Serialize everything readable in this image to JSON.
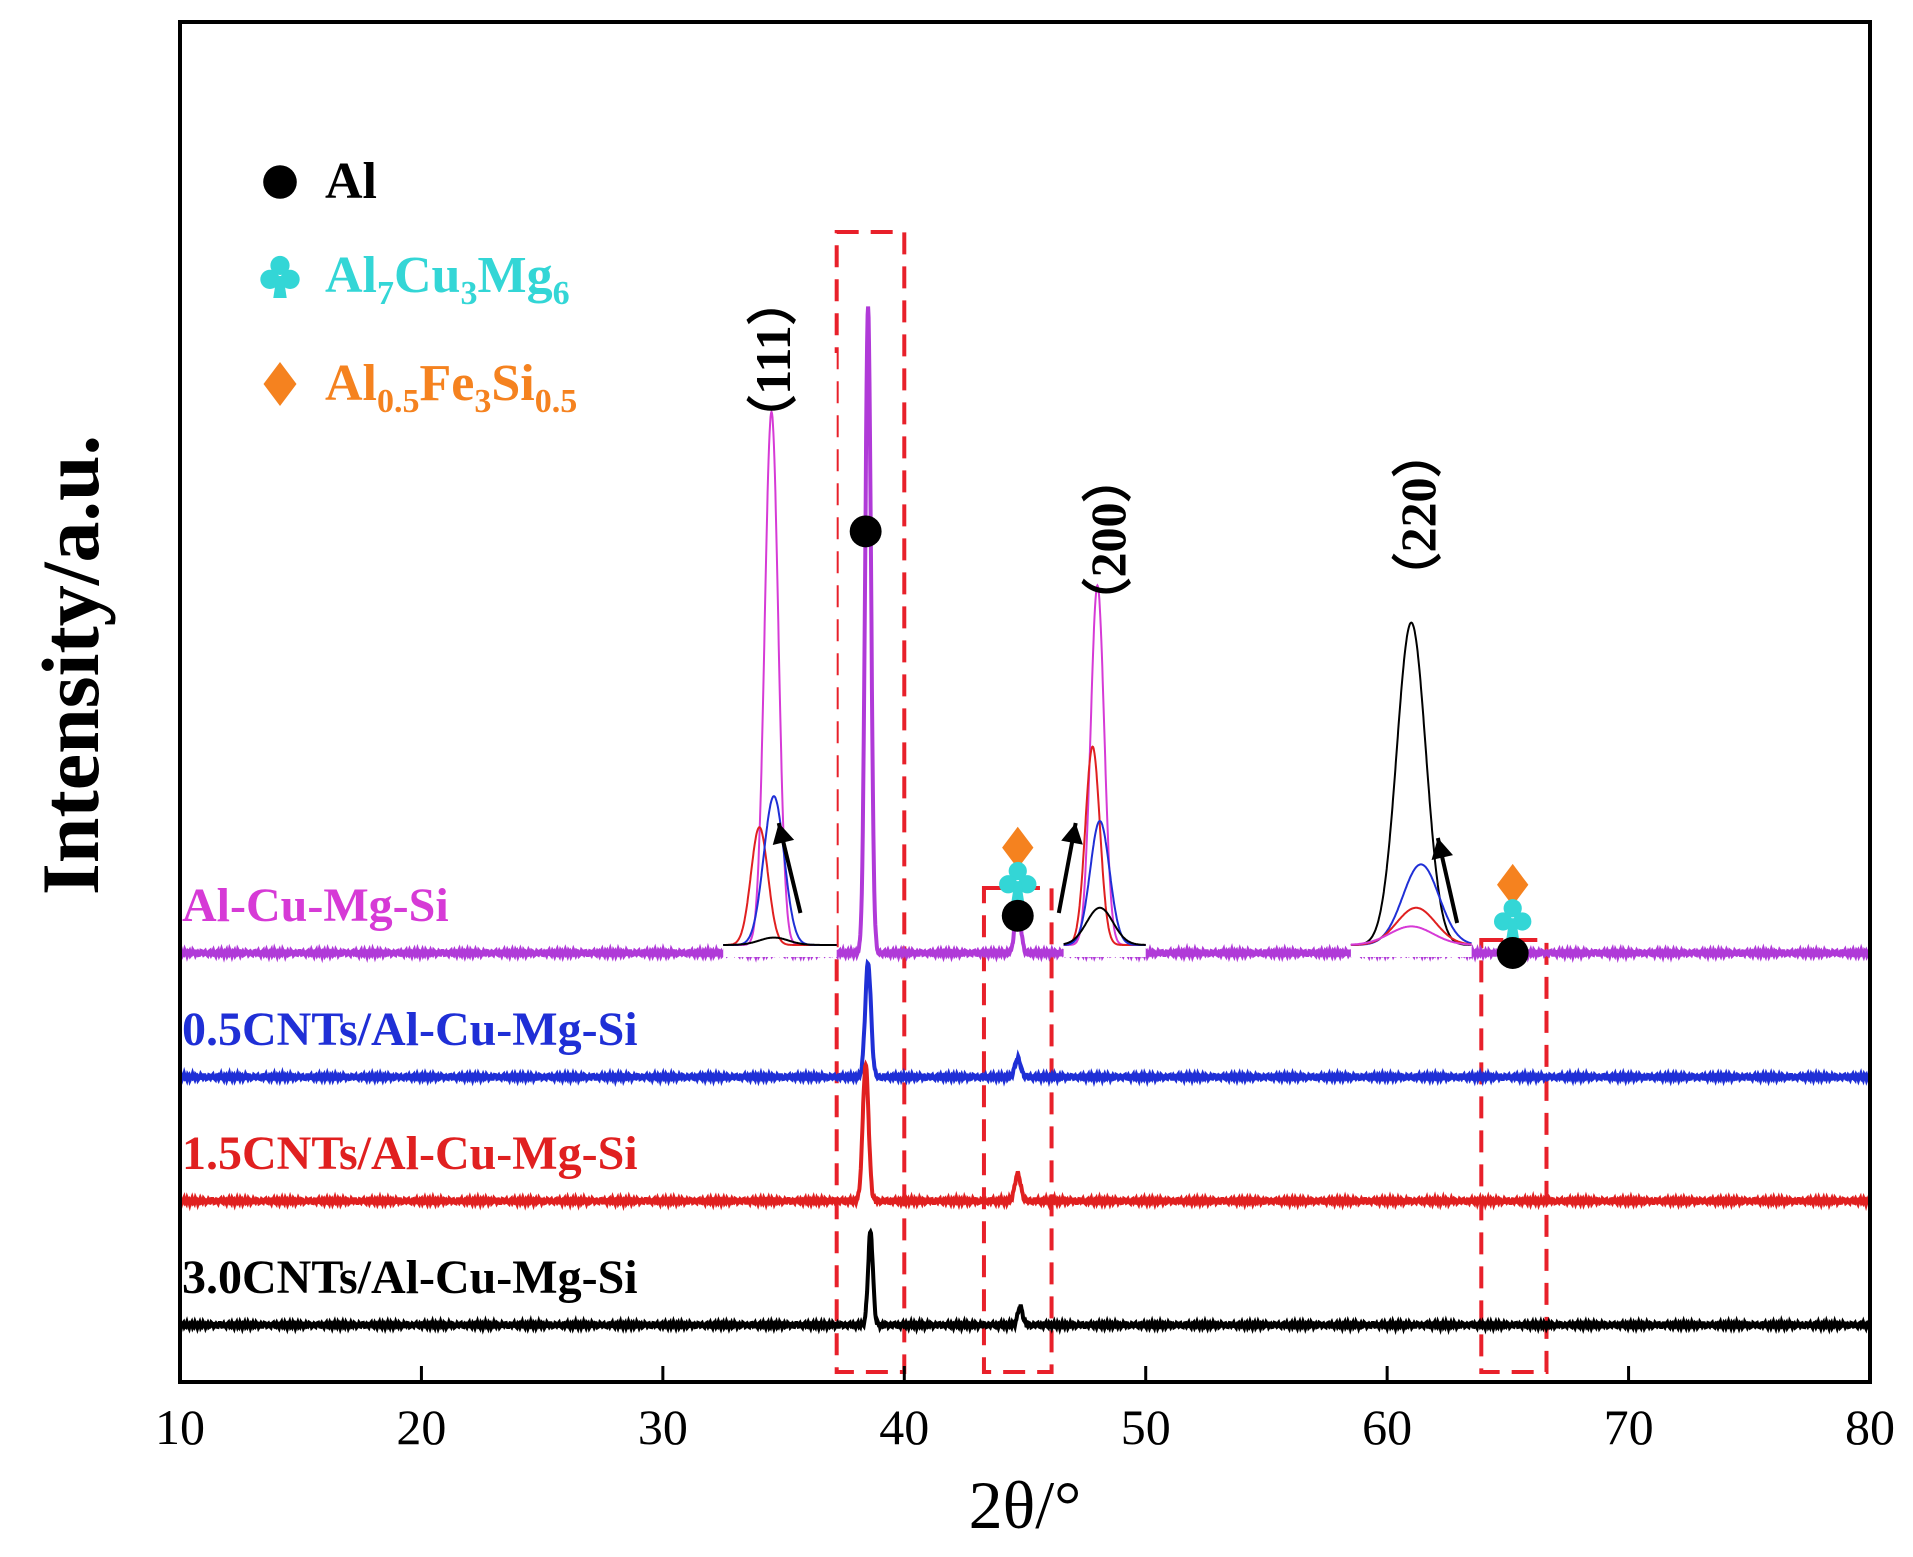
{
  "chart_data": {
    "type": "line",
    "title": "",
    "xlabel": "2θ/°",
    "ylabel": "Intensity/a.u.",
    "xlim": [
      10,
      80
    ],
    "xticks": [
      10,
      20,
      30,
      40,
      50,
      60,
      70,
      80
    ],
    "xtick_labels": [
      "10",
      "20",
      "30",
      "40",
      "50",
      "60",
      "70",
      "80"
    ],
    "y_ticks_shown": false,
    "legend": {
      "placement": "top-left",
      "entries": [
        {
          "marker": "circle",
          "color": "#000000",
          "text": "Al",
          "parts": [
            {
              "t": "Al",
              "sub": false
            }
          ]
        },
        {
          "marker": "club",
          "color": "#33d6d6",
          "text": "Al7Cu3Mg6",
          "parts": [
            {
              "t": "Al",
              "sub": false
            },
            {
              "t": "7",
              "sub": true
            },
            {
              "t": "Cu",
              "sub": false
            },
            {
              "t": "3",
              "sub": true
            },
            {
              "t": "Mg",
              "sub": false
            },
            {
              "t": "6",
              "sub": true
            }
          ]
        },
        {
          "marker": "diamond",
          "color": "#f5821f",
          "text": "Al0.5Fe3Si0.5",
          "parts": [
            {
              "t": "Al",
              "sub": false
            },
            {
              "t": "0.5",
              "sub": true
            },
            {
              "t": "Fe",
              "sub": false
            },
            {
              "t": "3",
              "sub": true
            },
            {
              "t": "Si",
              "sub": false
            },
            {
              "t": "0.5",
              "sub": true
            }
          ]
        }
      ]
    },
    "series": [
      {
        "name": "Al-Cu-Mg-Si",
        "color": "#b03ad8",
        "label_color": "#d63ad6",
        "offset": 3,
        "peaks": [
          {
            "x": 38.5,
            "h": 5.2,
            "w": 0.12
          },
          {
            "x": 44.7,
            "h": 0.4,
            "w": 0.12
          }
        ]
      },
      {
        "name": "0.5CNTs/Al-Cu-Mg-Si",
        "color": "#1f2fd6",
        "label_color": "#1f2fd6",
        "offset": 2,
        "peaks": [
          {
            "x": 38.5,
            "h": 0.92,
            "w": 0.12
          },
          {
            "x": 44.7,
            "h": 0.15,
            "w": 0.12
          }
        ]
      },
      {
        "name": "1.5CNTs/Al-Cu-Mg-Si",
        "color": "#e02020",
        "label_color": "#e02020",
        "offset": 1,
        "peaks": [
          {
            "x": 38.4,
            "h": 1.1,
            "w": 0.12
          },
          {
            "x": 44.7,
            "h": 0.22,
            "w": 0.12
          }
        ]
      },
      {
        "name": "3.0CNTs/Al-Cu-Mg-Si",
        "color": "#000000",
        "label_color": "#000000",
        "offset": 0,
        "peaks": [
          {
            "x": 38.6,
            "h": 0.75,
            "w": 0.1
          },
          {
            "x": 44.8,
            "h": 0.15,
            "w": 0.1
          }
        ]
      }
    ],
    "hkl_labels": [
      "（111）",
      "（200）",
      "（220）"
    ],
    "peak_markers": [
      {
        "x": 38.4,
        "level": 6.4,
        "marker": "circle"
      },
      {
        "x": 44.7,
        "level": 3.85,
        "marker": "diamond"
      },
      {
        "x": 44.7,
        "level": 3.58,
        "marker": "club"
      },
      {
        "x": 44.7,
        "level": 3.3,
        "marker": "circle"
      },
      {
        "x": 65.2,
        "level": 3.55,
        "marker": "diamond"
      },
      {
        "x": 65.2,
        "level": 3.28,
        "marker": "club"
      },
      {
        "x": 65.2,
        "level": 3.0,
        "marker": "circle"
      }
    ],
    "highlight_regions": [
      {
        "x_from": 37.2,
        "x_to": 40.0
      },
      {
        "x_from": 43.3,
        "x_to": 46.1
      },
      {
        "x_from": 63.9,
        "x_to": 66.6
      }
    ],
    "insets": [
      {
        "name": "111",
        "x_from": 32.5,
        "x_to": 37.2,
        "traces": [
          {
            "color": "#d63ad6",
            "center": 34.5,
            "h": 4.3,
            "w": 0.28
          },
          {
            "color": "#e02020",
            "center": 34.0,
            "h": 0.95,
            "w": 0.35
          },
          {
            "color": "#1f2fd6",
            "center": 34.6,
            "h": 1.2,
            "w": 0.42
          },
          {
            "color": "#000000",
            "center": 34.6,
            "h": 0.06,
            "w": 0.6
          }
        ]
      },
      {
        "name": "200",
        "x_from": 46.6,
        "x_to": 50.0,
        "traces": [
          {
            "color": "#d63ad6",
            "center": 48.0,
            "h": 2.9,
            "w": 0.28
          },
          {
            "color": "#e02020",
            "center": 47.8,
            "h": 1.6,
            "w": 0.3
          },
          {
            "color": "#1f2fd6",
            "center": 48.1,
            "h": 1.0,
            "w": 0.4
          },
          {
            "color": "#000000",
            "center": 48.1,
            "h": 0.3,
            "w": 0.55
          }
        ]
      },
      {
        "name": "220",
        "x_from": 58.5,
        "x_to": 63.5,
        "traces": [
          {
            "color": "#000000",
            "center": 61.0,
            "h": 2.6,
            "w": 0.6
          },
          {
            "color": "#1f2fd6",
            "center": 61.4,
            "h": 0.65,
            "w": 0.75
          },
          {
            "color": "#e02020",
            "center": 61.2,
            "h": 0.3,
            "w": 0.8
          },
          {
            "color": "#d63ad6",
            "center": 61.0,
            "h": 0.15,
            "w": 0.9
          }
        ]
      }
    ]
  }
}
